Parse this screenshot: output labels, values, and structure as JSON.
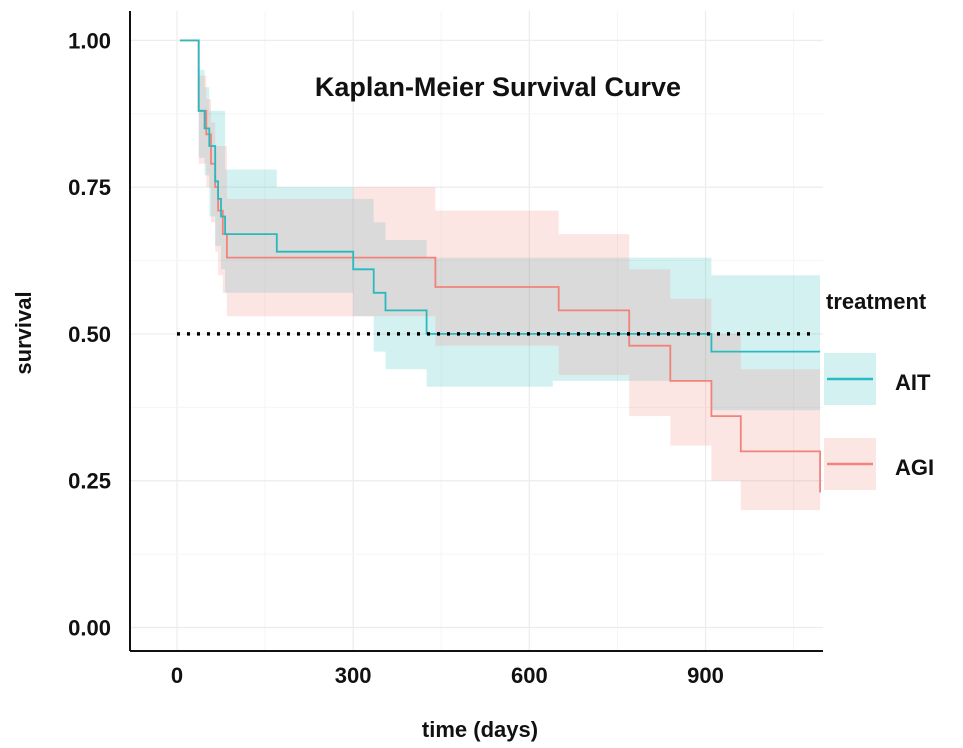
{
  "chart_data": {
    "type": "line",
    "title": "Kaplan-Meier Survival Curve",
    "xlabel": "time (days)",
    "ylabel": "survival",
    "xlim": [
      -80,
      1100
    ],
    "ylim": [
      -0.04,
      1.05
    ],
    "xticks": [
      0,
      300,
      600,
      900
    ],
    "yticks": [
      0,
      0.25,
      0.5,
      0.75,
      1.0
    ],
    "xtick_labels": [
      "0",
      "300",
      "600",
      "900"
    ],
    "ytick_labels": [
      "0.00",
      "0.25",
      "0.50",
      "0.75",
      "1.00"
    ],
    "grid": true,
    "reference_line": {
      "y": 0.5,
      "style": "dotted"
    },
    "legend": {
      "title": "treatment",
      "position": "right"
    },
    "series": [
      {
        "name": "AIT",
        "color": "#2ab9be",
        "fill": "#d3f1f2",
        "steps": [
          [
            5,
            1.0
          ],
          [
            37,
            0.88
          ],
          [
            47,
            0.85
          ],
          [
            55,
            0.82
          ],
          [
            65,
            0.76
          ],
          [
            70,
            0.73
          ],
          [
            75,
            0.7
          ],
          [
            82,
            0.67
          ],
          [
            170,
            0.64
          ],
          [
            300,
            0.61
          ],
          [
            335,
            0.57
          ],
          [
            355,
            0.54
          ],
          [
            425,
            0.5
          ],
          [
            910,
            0.47
          ],
          [
            1095,
            0.47
          ]
        ],
        "lower": [
          [
            5,
            1.0
          ],
          [
            37,
            0.8
          ],
          [
            47,
            0.77
          ],
          [
            55,
            0.7
          ],
          [
            65,
            0.65
          ],
          [
            75,
            0.61
          ],
          [
            82,
            0.57
          ],
          [
            300,
            0.53
          ],
          [
            335,
            0.47
          ],
          [
            355,
            0.44
          ],
          [
            425,
            0.41
          ],
          [
            640,
            0.42
          ],
          [
            910,
            0.37
          ],
          [
            1095,
            0.37
          ]
        ],
        "upper": [
          [
            5,
            1.0
          ],
          [
            37,
            0.95
          ],
          [
            47,
            0.92
          ],
          [
            55,
            0.88
          ],
          [
            82,
            0.78
          ],
          [
            170,
            0.75
          ],
          [
            300,
            0.73
          ],
          [
            335,
            0.69
          ],
          [
            355,
            0.66
          ],
          [
            425,
            0.63
          ],
          [
            910,
            0.6
          ],
          [
            1095,
            0.6
          ]
        ]
      },
      {
        "name": "AGI",
        "color": "#f2837a",
        "fill": "#fce3e1",
        "steps": [
          [
            5,
            1.0
          ],
          [
            37,
            0.88
          ],
          [
            50,
            0.84
          ],
          [
            58,
            0.79
          ],
          [
            65,
            0.75
          ],
          [
            70,
            0.71
          ],
          [
            78,
            0.67
          ],
          [
            85,
            0.63
          ],
          [
            440,
            0.58
          ],
          [
            650,
            0.54
          ],
          [
            770,
            0.48
          ],
          [
            840,
            0.42
          ],
          [
            910,
            0.36
          ],
          [
            960,
            0.3
          ],
          [
            1095,
            0.3
          ],
          [
            1095,
            0.23
          ]
        ],
        "lower": [
          [
            5,
            1.0
          ],
          [
            37,
            0.79
          ],
          [
            50,
            0.75
          ],
          [
            58,
            0.69
          ],
          [
            65,
            0.64
          ],
          [
            70,
            0.6
          ],
          [
            78,
            0.57
          ],
          [
            85,
            0.53
          ],
          [
            440,
            0.48
          ],
          [
            650,
            0.43
          ],
          [
            770,
            0.36
          ],
          [
            840,
            0.31
          ],
          [
            910,
            0.25
          ],
          [
            960,
            0.2
          ],
          [
            1095,
            0.2
          ]
        ],
        "upper": [
          [
            5,
            1.0
          ],
          [
            37,
            0.94
          ],
          [
            50,
            0.9
          ],
          [
            58,
            0.86
          ],
          [
            65,
            0.82
          ],
          [
            85,
            0.73
          ],
          [
            300,
            0.75
          ],
          [
            440,
            0.71
          ],
          [
            650,
            0.67
          ],
          [
            770,
            0.61
          ],
          [
            840,
            0.56
          ],
          [
            910,
            0.5
          ],
          [
            960,
            0.44
          ],
          [
            1095,
            0.44
          ]
        ]
      }
    ]
  }
}
